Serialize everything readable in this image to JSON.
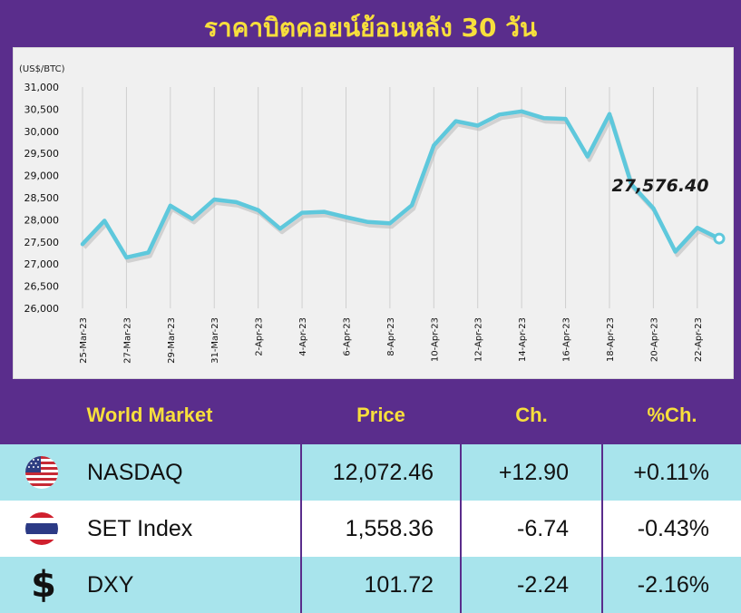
{
  "title": "ราคาบิตคอยน์ย้อนหลัง 30 วัน",
  "chart_data": {
    "type": "line",
    "ylabel": "(US$/BTC)",
    "ylim": [
      26000,
      31000
    ],
    "yticks": [
      "26,000",
      "26,500",
      "27,000",
      "27,500",
      "28,000",
      "28,500",
      "29,000",
      "29,500",
      "30,000",
      "30,500",
      "31,000"
    ],
    "ytick_values": [
      26000,
      26500,
      27000,
      27500,
      28000,
      28500,
      29000,
      29500,
      30000,
      30500,
      31000
    ],
    "x_labels": [
      "25-Mar-23",
      "27-Mar-23",
      "29-Mar-23",
      "31-Mar-23",
      "2-Apr-23",
      "4-Apr-23",
      "6-Apr-23",
      "8-Apr-23",
      "10-Apr-23",
      "12-Apr-23",
      "14-Apr-23",
      "16-Apr-23",
      "18-Apr-23",
      "20-Apr-23",
      "22-Apr-23"
    ],
    "x": [
      "25-Mar-23",
      "26-Mar-23",
      "27-Mar-23",
      "28-Mar-23",
      "29-Mar-23",
      "30-Mar-23",
      "31-Mar-23",
      "1-Apr-23",
      "2-Apr-23",
      "3-Apr-23",
      "4-Apr-23",
      "5-Apr-23",
      "6-Apr-23",
      "7-Apr-23",
      "8-Apr-23",
      "9-Apr-23",
      "10-Apr-23",
      "11-Apr-23",
      "12-Apr-23",
      "13-Apr-23",
      "14-Apr-23",
      "15-Apr-23",
      "16-Apr-23",
      "17-Apr-23",
      "18-Apr-23",
      "19-Apr-23",
      "20-Apr-23",
      "21-Apr-23",
      "22-Apr-23",
      "23-Apr-23"
    ],
    "values": [
      27450,
      27980,
      27150,
      27260,
      28320,
      28020,
      28460,
      28400,
      28220,
      27800,
      28160,
      28180,
      28060,
      27950,
      27920,
      28330,
      29680,
      30230,
      30130,
      30380,
      30450,
      30300,
      30280,
      29430,
      30390,
      28800,
      28260,
      27280,
      27820,
      27576.4
    ],
    "line_color": "#5ec8dc",
    "grid": "vertical",
    "annotation": "27,576.40"
  },
  "table": {
    "headers": [
      "World Market",
      "Price",
      "Ch.",
      "%Ch."
    ],
    "rows": [
      {
        "name": "NASDAQ",
        "price": "12,072.46",
        "ch": "+12.90",
        "pct": "+0.11%",
        "icon": "us-flag-icon"
      },
      {
        "name": "SET Index",
        "price": "1,558.36",
        "ch": "-6.74",
        "pct": "-0.43%",
        "icon": "thai-flag-icon"
      },
      {
        "name": "DXY",
        "price": "101.72",
        "ch": "-2.24",
        "pct": "-2.16%",
        "icon": "dollar-icon"
      }
    ]
  },
  "colors": {
    "background": "#5a2d8c",
    "title": "#f7df3c",
    "row_alt": "#a8e4ec"
  }
}
